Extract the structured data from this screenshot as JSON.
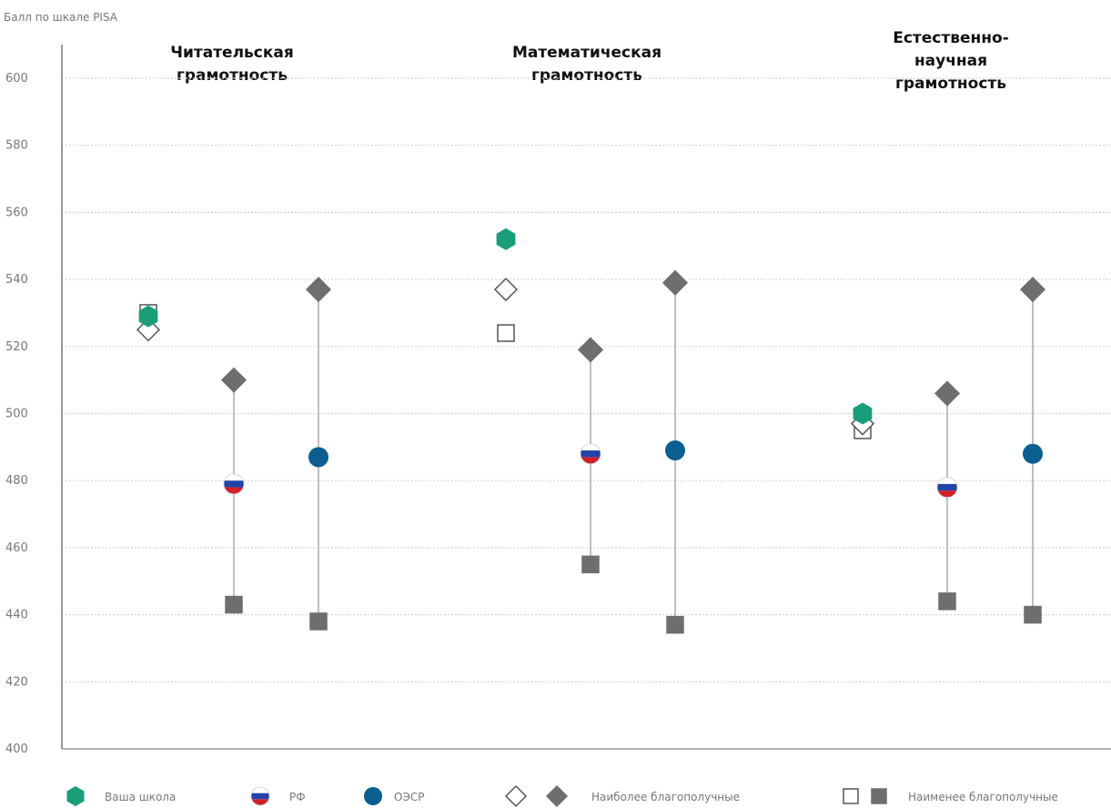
{
  "chart_data": {
    "type": "scatter",
    "ylabel": "Балл по шкале PISA",
    "ylim": [
      400,
      610
    ],
    "yticks": [
      400,
      420,
      440,
      460,
      480,
      500,
      520,
      540,
      560,
      580,
      600
    ],
    "grid": true,
    "panels": [
      {
        "title": "Читательская\nграмотность",
        "school": {
          "value": 529,
          "open_diamond": 525,
          "open_square": 530
        },
        "groups": [
          {
            "name": "РФ",
            "mean": 479,
            "top": 510,
            "bottom": 443
          },
          {
            "name": "ОЭСР",
            "mean": 487,
            "top": 537,
            "bottom": 438
          }
        ]
      },
      {
        "title": "Математическая\nграмотность",
        "school": {
          "value": 552,
          "open_diamond": 537,
          "open_square": 524
        },
        "groups": [
          {
            "name": "РФ",
            "mean": 488,
            "top": 519,
            "bottom": 455
          },
          {
            "name": "ОЭСР",
            "mean": 489,
            "top": 539,
            "bottom": 437
          }
        ]
      },
      {
        "title": "Естественно-\nнаучная\nграмотность",
        "school": {
          "value": 500,
          "open_diamond": 497,
          "open_square": 495
        },
        "groups": [
          {
            "name": "РФ",
            "mean": 478,
            "top": 506,
            "bottom": 444
          },
          {
            "name": "ОЭСР",
            "mean": 488,
            "top": 537,
            "bottom": 440
          }
        ]
      }
    ],
    "legend": [
      {
        "label": "Ваша школа",
        "marker": "green-hexagon"
      },
      {
        "label": "РФ",
        "marker": "russian-flag-circle"
      },
      {
        "label": "ОЭСР",
        "marker": "blue-circle"
      },
      {
        "label": "Наиболее благополучные",
        "marker": "diamond-open-and-filled"
      },
      {
        "label": "Наименее благополучные",
        "marker": "square-open-and-filled"
      }
    ],
    "colors": {
      "school": "#1a9e7a",
      "oecd": "#0a5f8f",
      "marker_gray": "#6e6e6e",
      "rf_white": "#ffffff",
      "rf_blue": "#2443a8",
      "rf_red": "#d2202a",
      "grid": "#d6d6d6",
      "axis": "#999999"
    }
  }
}
